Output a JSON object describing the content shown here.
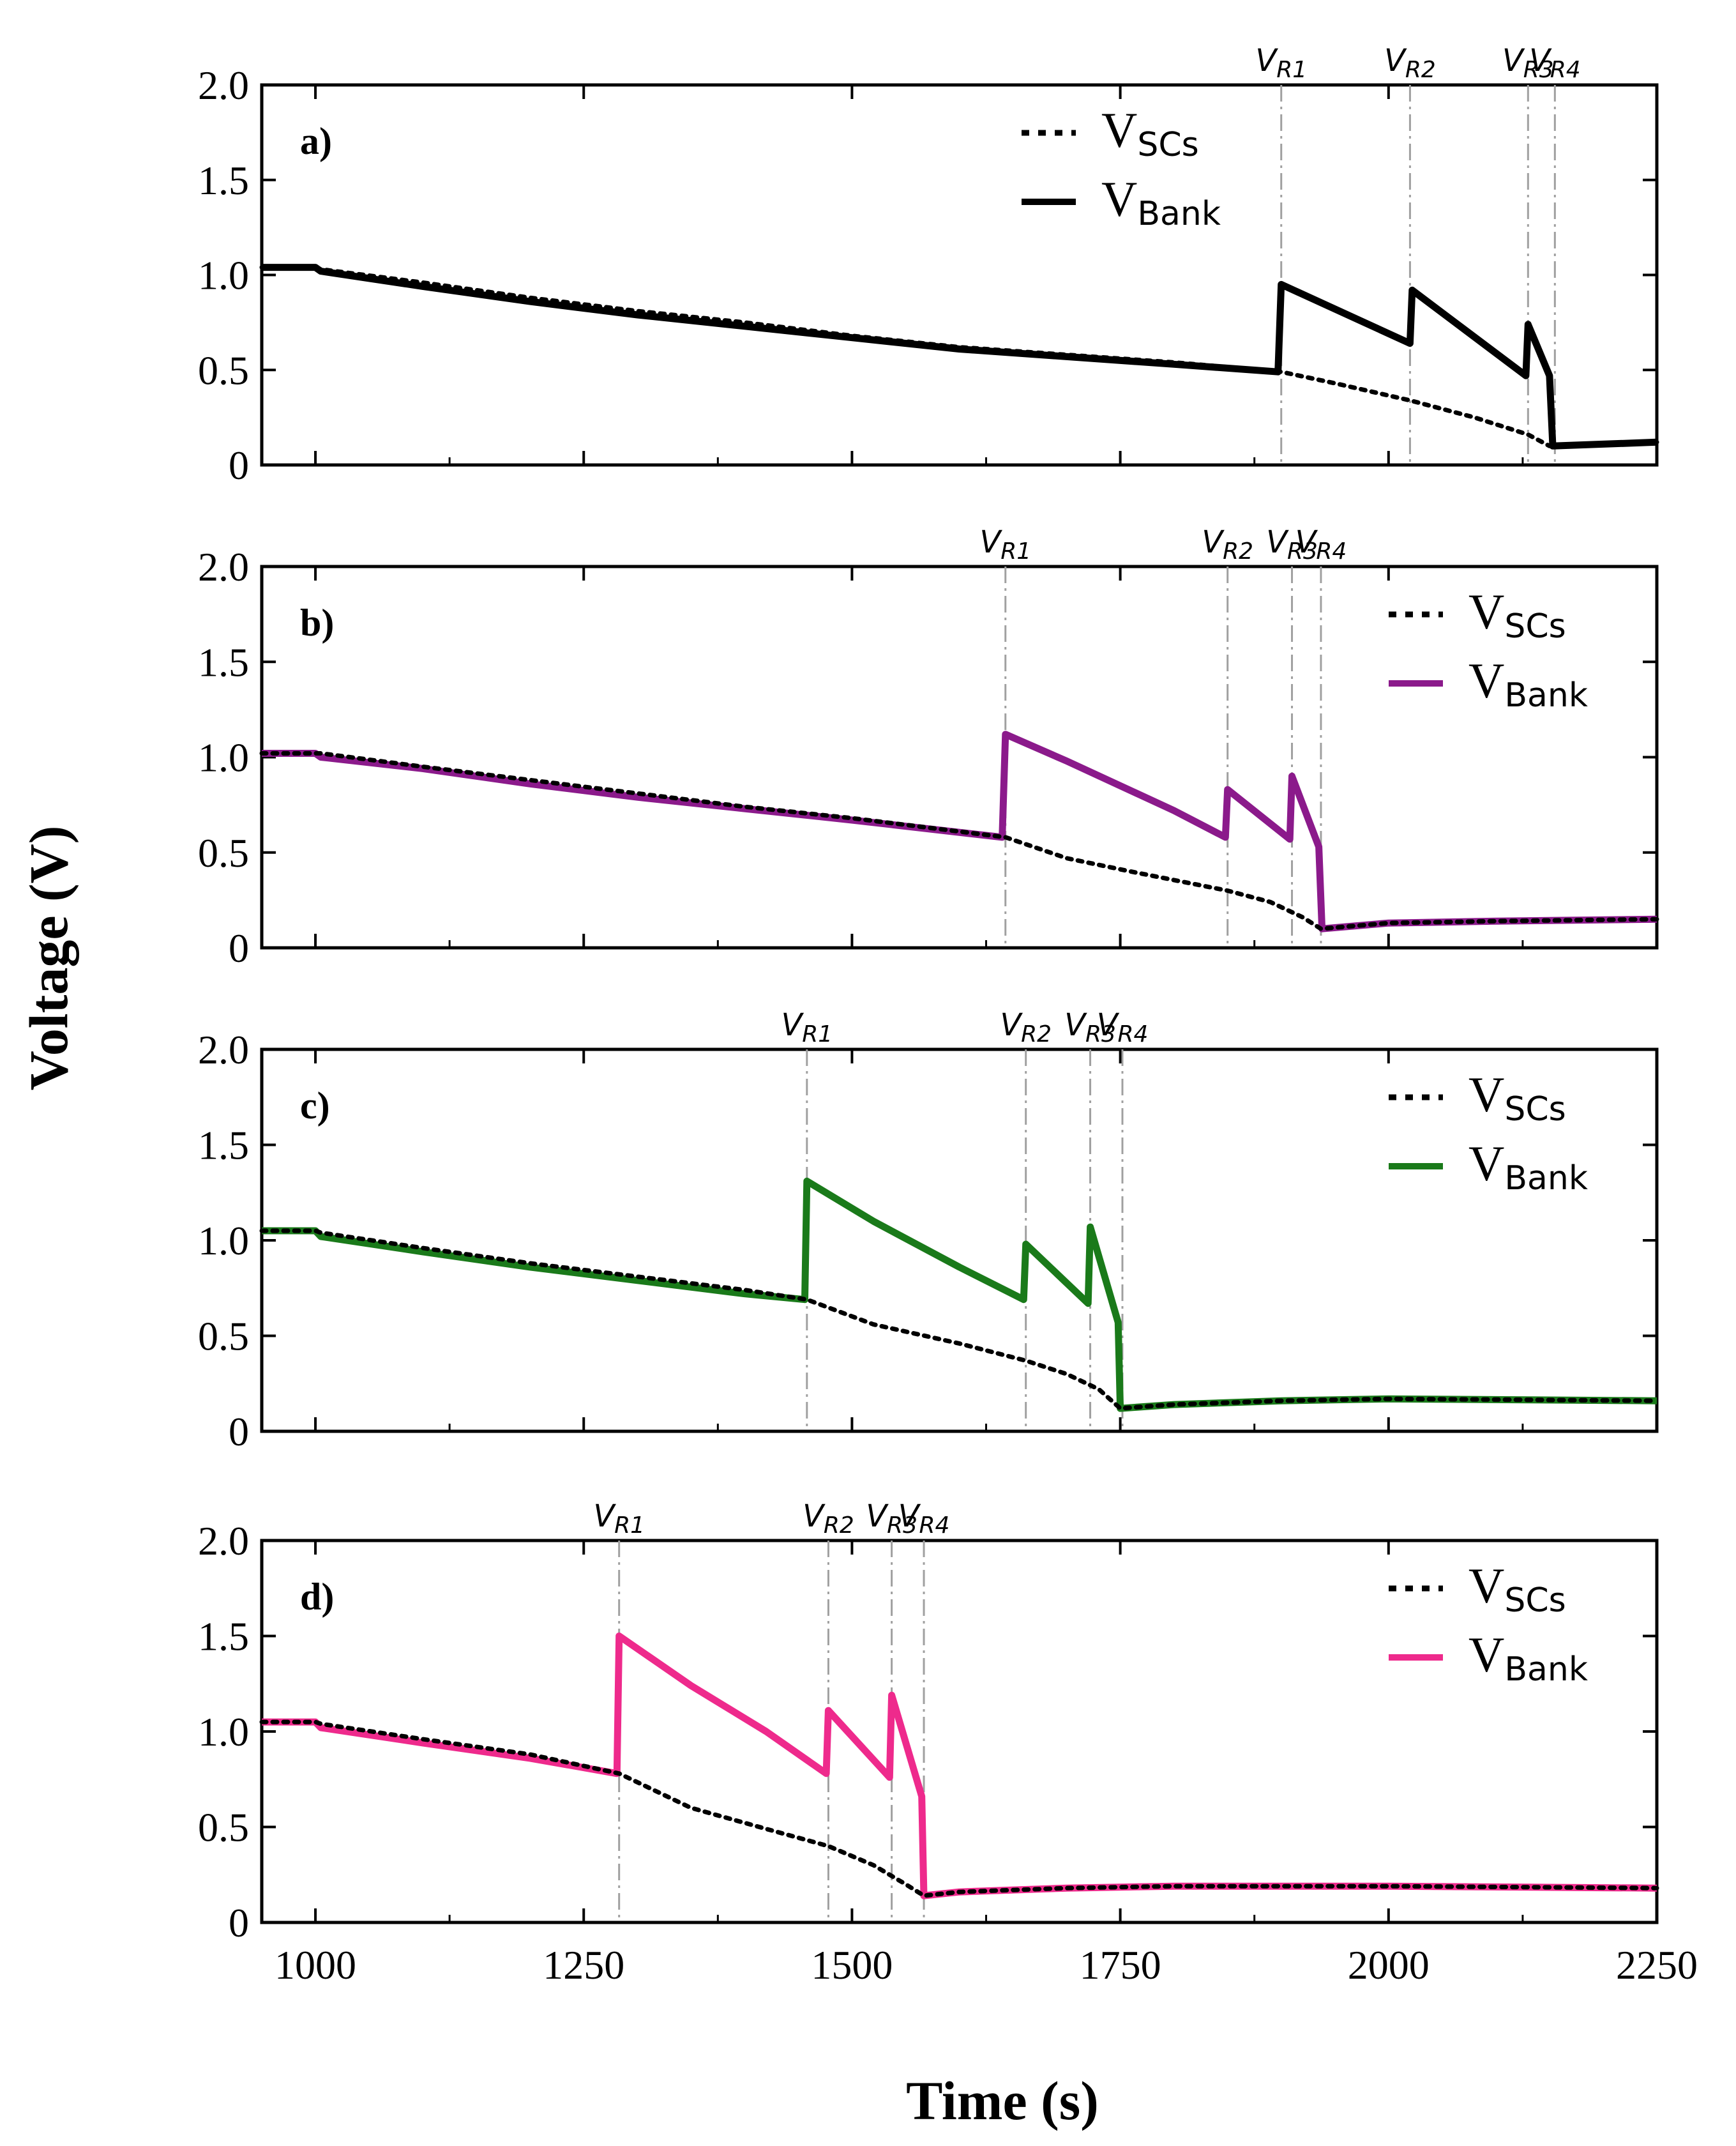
{
  "figure": {
    "ylabel": "Voltage (V)",
    "xlabel": "Time (s)"
  },
  "chart_data": [
    {
      "type": "line",
      "panel_label": "a)",
      "xlim": [
        950,
        2250
      ],
      "ylim": [
        0,
        2.0
      ],
      "x_ticks": [
        1000,
        1250,
        1500,
        1750,
        2000,
        2250
      ],
      "y_ticks": [
        0,
        0.5,
        1.0,
        1.5,
        2.0
      ],
      "y_tick_labels": [
        "0",
        "0.5",
        "1.0",
        "1.5",
        "2.0"
      ],
      "legend": {
        "position": "top-center",
        "entries": [
          {
            "base": "V",
            "sub": "SCs",
            "style": "dotted",
            "color": "#000000"
          },
          {
            "base": "V",
            "sub": "Bank",
            "style": "solid",
            "color": "#000000"
          }
        ]
      },
      "markers": [
        {
          "base": "V",
          "sub": "R1",
          "x": 1900
        },
        {
          "base": "V",
          "sub": "R2",
          "x": 2020
        },
        {
          "base": "V",
          "sub": "R3",
          "x": 2130
        },
        {
          "base": "V",
          "sub": "R4",
          "x": 2155
        }
      ],
      "series": [
        {
          "name": "V_Bank",
          "color": "#000000",
          "points": [
            [
              950,
              1.04
            ],
            [
              1000,
              1.04
            ],
            [
              1005,
              1.02
            ],
            [
              1100,
              0.94
            ],
            [
              1200,
              0.86
            ],
            [
              1300,
              0.79
            ],
            [
              1400,
              0.73
            ],
            [
              1500,
              0.67
            ],
            [
              1600,
              0.61
            ],
            [
              1700,
              0.57
            ],
            [
              1800,
              0.53
            ],
            [
              1897,
              0.49
            ],
            [
              1900,
              0.95
            ],
            [
              2020,
              0.64
            ],
            [
              2022,
              0.92
            ],
            [
              2128,
              0.47
            ],
            [
              2130,
              0.74
            ],
            [
              2150,
              0.47
            ],
            [
              2153,
              0.1
            ],
            [
              2250,
              0.12
            ]
          ]
        },
        {
          "name": "V_SCs",
          "color": "#000000",
          "points": [
            [
              950,
              1.04
            ],
            [
              1000,
              1.04
            ],
            [
              1005,
              1.03
            ],
            [
              1100,
              0.96
            ],
            [
              1200,
              0.88
            ],
            [
              1300,
              0.81
            ],
            [
              1400,
              0.75
            ],
            [
              1500,
              0.68
            ],
            [
              1600,
              0.62
            ],
            [
              1700,
              0.58
            ],
            [
              1800,
              0.54
            ],
            [
              1900,
              0.49
            ],
            [
              1950,
              0.43
            ],
            [
              2020,
              0.34
            ],
            [
              2080,
              0.25
            ],
            [
              2130,
              0.16
            ],
            [
              2150,
              0.1
            ],
            [
              2250,
              0.12
            ]
          ]
        }
      ]
    },
    {
      "type": "line",
      "panel_label": "b)",
      "xlim": [
        950,
        2250
      ],
      "ylim": [
        0,
        2.0
      ],
      "x_ticks": [
        1000,
        1250,
        1500,
        1750,
        2000,
        2250
      ],
      "y_ticks": [
        0,
        0.5,
        1.0,
        1.5,
        2.0
      ],
      "y_tick_labels": [
        "0",
        "0.5",
        "1.0",
        "1.5",
        "2.0"
      ],
      "legend": {
        "position": "top-right",
        "entries": [
          {
            "base": "V",
            "sub": "SCs",
            "style": "dotted",
            "color": "#000000"
          },
          {
            "base": "V",
            "sub": "Bank",
            "style": "solid",
            "color": "#8b1a8b"
          }
        ]
      },
      "markers": [
        {
          "base": "V",
          "sub": "R1",
          "x": 1643
        },
        {
          "base": "V",
          "sub": "R2",
          "x": 1850
        },
        {
          "base": "V",
          "sub": "R3",
          "x": 1910
        },
        {
          "base": "V",
          "sub": "R4",
          "x": 1937
        }
      ],
      "series": [
        {
          "name": "V_Bank",
          "color": "#8b1a8b",
          "points": [
            [
              950,
              1.02
            ],
            [
              1000,
              1.02
            ],
            [
              1005,
              1.0
            ],
            [
              1100,
              0.94
            ],
            [
              1200,
              0.86
            ],
            [
              1300,
              0.79
            ],
            [
              1400,
              0.73
            ],
            [
              1500,
              0.67
            ],
            [
              1640,
              0.58
            ],
            [
              1643,
              1.12
            ],
            [
              1700,
              0.98
            ],
            [
              1800,
              0.72
            ],
            [
              1848,
              0.58
            ],
            [
              1850,
              0.83
            ],
            [
              1908,
              0.57
            ],
            [
              1910,
              0.9
            ],
            [
              1935,
              0.53
            ],
            [
              1938,
              0.1
            ],
            [
              2000,
              0.13
            ],
            [
              2100,
              0.14
            ],
            [
              2250,
              0.15
            ]
          ]
        },
        {
          "name": "V_SCs",
          "color": "#000000",
          "points": [
            [
              950,
              1.02
            ],
            [
              1000,
              1.02
            ],
            [
              1005,
              1.02
            ],
            [
              1100,
              0.95
            ],
            [
              1200,
              0.88
            ],
            [
              1300,
              0.81
            ],
            [
              1400,
              0.74
            ],
            [
              1500,
              0.68
            ],
            [
              1643,
              0.58
            ],
            [
              1700,
              0.47
            ],
            [
              1760,
              0.4
            ],
            [
              1850,
              0.3
            ],
            [
              1890,
              0.24
            ],
            [
              1920,
              0.16
            ],
            [
              1937,
              0.1
            ],
            [
              2000,
              0.13
            ],
            [
              2100,
              0.14
            ],
            [
              2250,
              0.15
            ]
          ]
        }
      ]
    },
    {
      "type": "line",
      "panel_label": "c)",
      "xlim": [
        950,
        2250
      ],
      "ylim": [
        0,
        2.0
      ],
      "x_ticks": [
        1000,
        1250,
        1500,
        1750,
        2000,
        2250
      ],
      "y_ticks": [
        0,
        0.5,
        1.0,
        1.5,
        2.0
      ],
      "y_tick_labels": [
        "0",
        "0.5",
        "1.0",
        "1.5",
        "2.0"
      ],
      "legend": {
        "position": "top-right",
        "entries": [
          {
            "base": "V",
            "sub": "SCs",
            "style": "dotted",
            "color": "#000000"
          },
          {
            "base": "V",
            "sub": "Bank",
            "style": "solid",
            "color": "#1a7a1a"
          }
        ]
      },
      "markers": [
        {
          "base": "V",
          "sub": "R1",
          "x": 1458
        },
        {
          "base": "V",
          "sub": "R2",
          "x": 1662
        },
        {
          "base": "V",
          "sub": "R3",
          "x": 1722
        },
        {
          "base": "V",
          "sub": "R4",
          "x": 1752
        }
      ],
      "series": [
        {
          "name": "V_Bank",
          "color": "#1a7a1a",
          "points": [
            [
              950,
              1.05
            ],
            [
              1000,
              1.05
            ],
            [
              1005,
              1.02
            ],
            [
              1100,
              0.94
            ],
            [
              1200,
              0.86
            ],
            [
              1300,
              0.79
            ],
            [
              1400,
              0.72
            ],
            [
              1456,
              0.69
            ],
            [
              1458,
              1.31
            ],
            [
              1520,
              1.1
            ],
            [
              1600,
              0.86
            ],
            [
              1660,
              0.69
            ],
            [
              1662,
              0.98
            ],
            [
              1720,
              0.67
            ],
            [
              1722,
              1.07
            ],
            [
              1748,
              0.57
            ],
            [
              1750,
              0.12
            ],
            [
              1800,
              0.14
            ],
            [
              1900,
              0.16
            ],
            [
              2000,
              0.17
            ],
            [
              2250,
              0.16
            ]
          ]
        },
        {
          "name": "V_SCs",
          "color": "#000000",
          "points": [
            [
              950,
              1.05
            ],
            [
              1000,
              1.05
            ],
            [
              1005,
              1.04
            ],
            [
              1100,
              0.96
            ],
            [
              1200,
              0.88
            ],
            [
              1300,
              0.81
            ],
            [
              1400,
              0.74
            ],
            [
              1458,
              0.69
            ],
            [
              1520,
              0.56
            ],
            [
              1600,
              0.46
            ],
            [
              1662,
              0.37
            ],
            [
              1700,
              0.3
            ],
            [
              1730,
              0.22
            ],
            [
              1750,
              0.12
            ],
            [
              1800,
              0.14
            ],
            [
              1900,
              0.16
            ],
            [
              2000,
              0.17
            ],
            [
              2250,
              0.16
            ]
          ]
        }
      ]
    },
    {
      "type": "line",
      "panel_label": "d)",
      "xlim": [
        950,
        2250
      ],
      "ylim": [
        0,
        2.0
      ],
      "x_ticks": [
        1000,
        1250,
        1500,
        1750,
        2000,
        2250
      ],
      "x_tick_labels": [
        "1000",
        "1250",
        "1500",
        "1750",
        "2000",
        "2250"
      ],
      "y_ticks": [
        0,
        0.5,
        1.0,
        1.5,
        2.0
      ],
      "y_tick_labels": [
        "0",
        "0.5",
        "1.0",
        "1.5",
        "2.0"
      ],
      "legend": {
        "position": "top-right",
        "entries": [
          {
            "base": "V",
            "sub": "SCs",
            "style": "dotted",
            "color": "#000000"
          },
          {
            "base": "V",
            "sub": "Bank",
            "style": "solid",
            "color": "#ee2a8c"
          }
        ]
      },
      "markers": [
        {
          "base": "V",
          "sub": "R1",
          "x": 1283
        },
        {
          "base": "V",
          "sub": "R2",
          "x": 1478
        },
        {
          "base": "V",
          "sub": "R3",
          "x": 1537
        },
        {
          "base": "V",
          "sub": "R4",
          "x": 1567
        }
      ],
      "series": [
        {
          "name": "V_Bank",
          "color": "#ee2a8c",
          "points": [
            [
              950,
              1.05
            ],
            [
              1000,
              1.05
            ],
            [
              1005,
              1.02
            ],
            [
              1100,
              0.94
            ],
            [
              1200,
              0.86
            ],
            [
              1281,
              0.78
            ],
            [
              1283,
              1.5
            ],
            [
              1350,
              1.24
            ],
            [
              1420,
              1.0
            ],
            [
              1476,
              0.78
            ],
            [
              1478,
              1.11
            ],
            [
              1535,
              0.76
            ],
            [
              1537,
              1.19
            ],
            [
              1565,
              0.66
            ],
            [
              1567,
              0.14
            ],
            [
              1600,
              0.16
            ],
            [
              1700,
              0.18
            ],
            [
              1800,
              0.19
            ],
            [
              2000,
              0.19
            ],
            [
              2250,
              0.18
            ]
          ]
        },
        {
          "name": "V_SCs",
          "color": "#000000",
          "points": [
            [
              950,
              1.05
            ],
            [
              1000,
              1.05
            ],
            [
              1005,
              1.04
            ],
            [
              1100,
              0.96
            ],
            [
              1200,
              0.88
            ],
            [
              1283,
              0.78
            ],
            [
              1350,
              0.6
            ],
            [
              1420,
              0.49
            ],
            [
              1478,
              0.4
            ],
            [
              1520,
              0.3
            ],
            [
              1550,
              0.2
            ],
            [
              1567,
              0.14
            ],
            [
              1600,
              0.16
            ],
            [
              1700,
              0.18
            ],
            [
              1800,
              0.19
            ],
            [
              2000,
              0.19
            ],
            [
              2250,
              0.18
            ]
          ]
        }
      ]
    }
  ]
}
